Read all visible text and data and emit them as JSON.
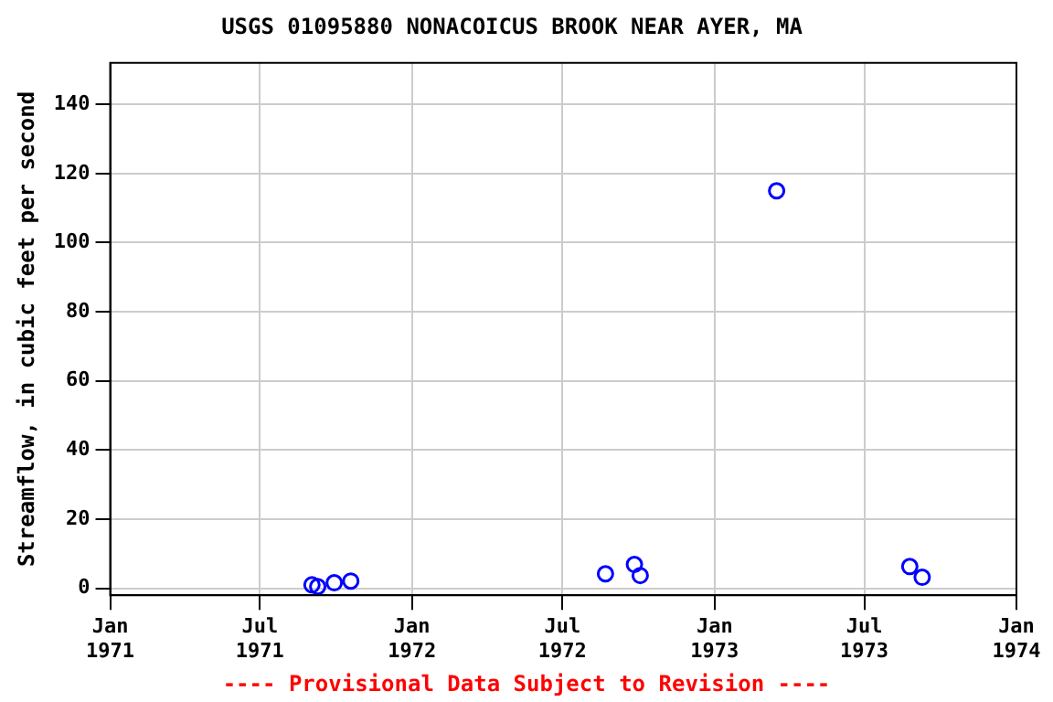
{
  "chart_data": {
    "type": "scatter",
    "title": "USGS 01095880 NONACOICUS BROOK NEAR AYER, MA",
    "ylabel": "Streamflow, in cubic feet per second",
    "x": [
      "1971-09-02",
      "1971-09-09",
      "1971-09-29",
      "1971-10-19",
      "1972-08-22",
      "1972-09-26",
      "1972-10-03",
      "1973-03-17",
      "1973-08-25",
      "1973-09-09"
    ],
    "series": [
      {
        "color": "#0000ff",
        "values": [
          1,
          0.5,
          1.6,
          2.1,
          4.2,
          6.9,
          3.7,
          115,
          6.3,
          3.2
        ]
      }
    ],
    "xlim": [
      "1971-01-01",
      "1974-01-01"
    ],
    "xticks": [
      {
        "value": "1971-01-01",
        "label": "Jan 1971"
      },
      {
        "value": "1971-07-01",
        "label": "Jul 1971"
      },
      {
        "value": "1972-01-01",
        "label": "Jan 1972"
      },
      {
        "value": "1972-07-01",
        "label": "Jul 1972"
      },
      {
        "value": "1973-01-01",
        "label": "Jan 1973"
      },
      {
        "value": "1973-07-01",
        "label": "Jul 1973"
      },
      {
        "value": "1974-01-01",
        "label": "Jan 1974"
      }
    ],
    "ylim": [
      -2,
      152
    ],
    "yticks": [
      0,
      20,
      40,
      60,
      80,
      100,
      120,
      140
    ],
    "grid": true,
    "legend": false,
    "marker": "circle",
    "annotations": [
      "---- Provisional Data Subject to Revision ----"
    ]
  }
}
